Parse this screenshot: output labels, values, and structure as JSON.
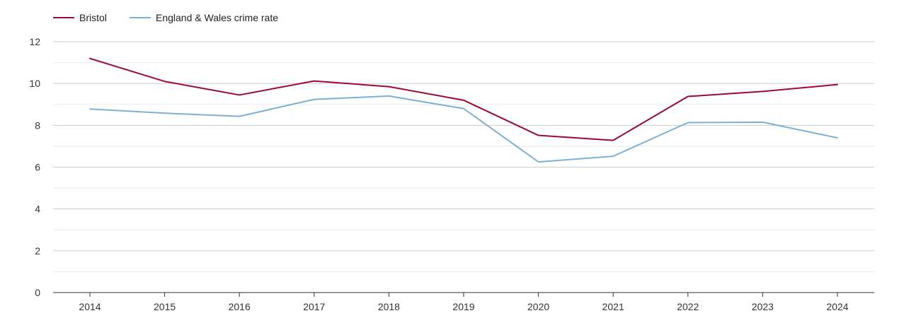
{
  "chart_data": {
    "type": "line",
    "title": "",
    "xlabel": "",
    "ylabel": "",
    "categories": [
      "2014",
      "2015",
      "2016",
      "2017",
      "2018",
      "2019",
      "2020",
      "2021",
      "2022",
      "2023",
      "2024"
    ],
    "ylim": [
      0,
      12
    ],
    "y_ticks": [
      "0",
      "2",
      "4",
      "6",
      "8",
      "10",
      "12"
    ],
    "y_minor_step": 1,
    "grid": true,
    "legend_position": "top-left",
    "series": [
      {
        "name": "Bristol",
        "color": "#9b0a2f",
        "values": [
          11.2,
          10.1,
          9.45,
          10.12,
          9.85,
          9.2,
          7.52,
          7.28,
          9.38,
          9.62,
          9.95
        ]
      },
      {
        "name": "England & Wales crime rate",
        "color": "#7ab0d4",
        "values": [
          8.78,
          8.58,
          8.43,
          9.24,
          9.4,
          8.8,
          6.25,
          6.52,
          8.13,
          8.15,
          7.4
        ]
      }
    ]
  }
}
